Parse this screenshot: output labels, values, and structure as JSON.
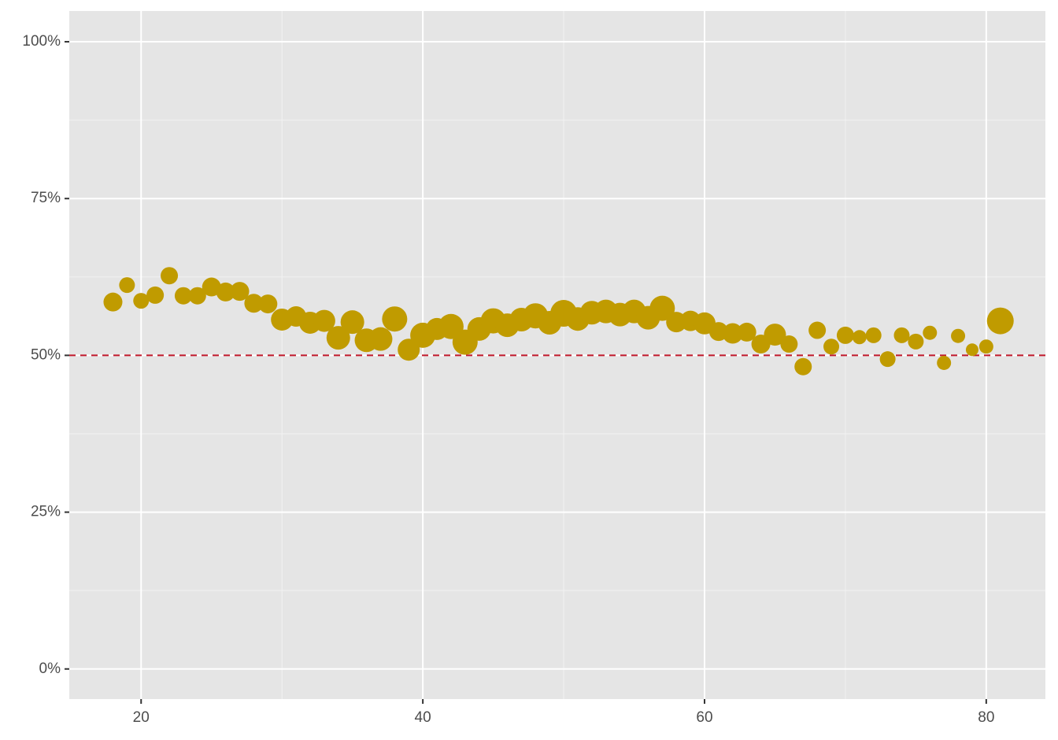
{
  "chart_data": {
    "type": "scatter",
    "x": [
      18,
      19,
      20,
      21,
      22,
      23,
      24,
      25,
      26,
      27,
      28,
      29,
      30,
      31,
      32,
      33,
      34,
      35,
      36,
      37,
      38,
      39,
      40,
      41,
      42,
      43,
      44,
      45,
      46,
      47,
      48,
      49,
      50,
      51,
      52,
      53,
      54,
      55,
      56,
      57,
      58,
      59,
      60,
      61,
      62,
      63,
      64,
      65,
      66,
      67,
      68,
      69,
      70,
      71,
      72,
      73,
      74,
      75,
      76,
      77,
      78,
      79,
      80,
      81
    ],
    "series": [
      {
        "color": "#c09b00",
        "values": [
          58.5,
          61.2,
          58.7,
          59.6,
          62.7,
          59.5,
          59.5,
          60.9,
          60.1,
          60.2,
          58.3,
          58.2,
          55.7,
          56.2,
          55.2,
          55.5,
          52.8,
          55.3,
          52.4,
          52.6,
          55.8,
          50.9,
          53.2,
          54.2,
          54.6,
          52.1,
          54.2,
          55.5,
          54.8,
          55.7,
          56.3,
          55.2,
          56.7,
          55.8,
          56.8,
          57.0,
          56.5,
          57.0,
          56.0,
          57.5,
          55.3,
          55.5,
          55.1,
          53.8,
          53.5,
          53.7,
          51.8,
          53.3,
          51.8,
          48.2,
          54.0,
          51.4,
          53.2,
          52.9,
          53.2,
          49.4,
          53.2,
          52.2,
          53.6,
          48.8,
          53.1,
          50.9,
          51.4,
          55.5
        ],
        "sizes": [
          12,
          10,
          10,
          11,
          11,
          11,
          11,
          12,
          12,
          12,
          12,
          12,
          14,
          13,
          14,
          14,
          15,
          15,
          15,
          15,
          16,
          14,
          16,
          14,
          16,
          16,
          15,
          16,
          15,
          15,
          16,
          15,
          17,
          15,
          15,
          15,
          15,
          15,
          15,
          16,
          13,
          13,
          14,
          12,
          13,
          12,
          12,
          14,
          11,
          11,
          11,
          10,
          11,
          9,
          10,
          10,
          10,
          10,
          9,
          9,
          9,
          8,
          9,
          17
        ]
      }
    ],
    "xlim": [
      14.9,
      84.2
    ],
    "ylim": [
      -4.8,
      104.9
    ],
    "xticks": [
      20,
      40,
      60,
      80
    ],
    "x_minor_ticks": [
      30,
      50,
      70
    ],
    "yticks": [
      {
        "value": 0,
        "label": "0%"
      },
      {
        "value": 25,
        "label": "25%"
      },
      {
        "value": 50,
        "label": "50%"
      },
      {
        "value": 75,
        "label": "75%"
      },
      {
        "value": 100,
        "label": "100%"
      }
    ],
    "y_minor_ticks": [
      12.5,
      37.5,
      62.5,
      87.5
    ],
    "hline": {
      "value": 50,
      "color": "#c0182a"
    },
    "grid": true
  }
}
